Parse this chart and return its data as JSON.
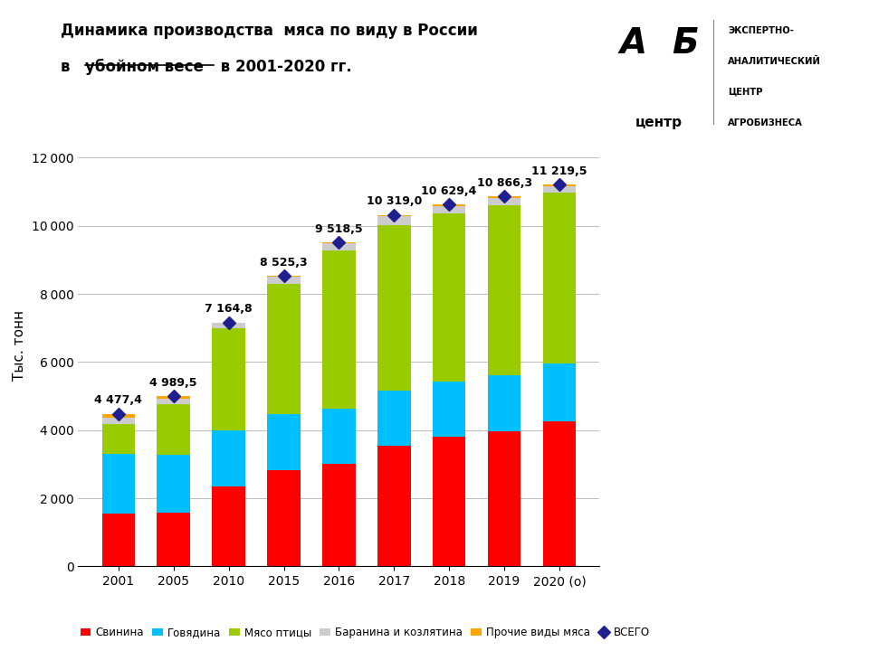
{
  "years": [
    "2001",
    "2005",
    "2010",
    "2015",
    "2016",
    "2017",
    "2018",
    "2019",
    "2020 (о)"
  ],
  "totals": [
    4477.4,
    4989.5,
    7164.8,
    8525.3,
    9518.5,
    10319.0,
    10629.4,
    10866.3,
    11219.5
  ],
  "svinina": [
    1550,
    1590,
    2335,
    2820,
    3020,
    3540,
    3815,
    3975,
    4270
  ],
  "govyadina": [
    1740,
    1680,
    1670,
    1640,
    1620,
    1610,
    1625,
    1625,
    1695
  ],
  "ptitsa": [
    900,
    1490,
    3000,
    3830,
    4640,
    4870,
    4930,
    5000,
    5010
  ],
  "baranina": [
    175,
    165,
    155,
    205,
    210,
    260,
    220,
    225,
    200
  ],
  "prochie": [
    112.4,
    64.5,
    4.8,
    30.3,
    28.5,
    39.0,
    39.4,
    41.3,
    44.5
  ],
  "colors_svinina": "#FF0000",
  "colors_govyadina": "#00BFFF",
  "colors_ptitsa": "#99CC00",
  "colors_baranina": "#CCCCCC",
  "colors_prochie": "#FFA500",
  "total_marker_color": "#1F1F8F",
  "ylabel": "Тыс. тонн",
  "ylim": [
    0,
    13000
  ],
  "yticks": [
    0,
    2000,
    4000,
    6000,
    8000,
    10000,
    12000
  ],
  "background_color": "#FFFFFF",
  "grid_color": "#BBBBBB",
  "total_labels": [
    "4 477,4",
    "4 989,5",
    "7 164,8",
    "8 525,3",
    "9 518,5",
    "10 319,0",
    "10 629,4",
    "10 866,3",
    "11 219,5"
  ]
}
